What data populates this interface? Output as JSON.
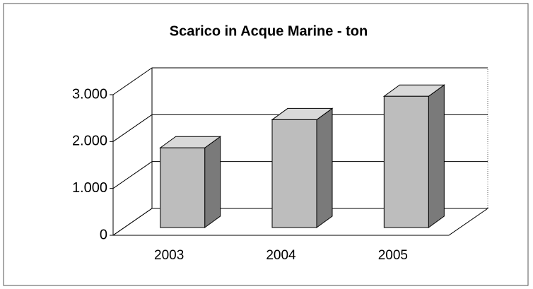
{
  "chart_data": {
    "type": "bar3d",
    "title": "Scarico in Acque Marine - ton",
    "categories": [
      "2003",
      "2004",
      "2005"
    ],
    "values": [
      1700,
      2300,
      2800
    ],
    "color": "#bdbdbd",
    "ylim": [
      0,
      3000
    ],
    "yticks": [
      0,
      {
        "value": 1000,
        "label": "1.000"
      },
      {
        "value": 2000,
        "label": "2.000"
      },
      {
        "value": 3000,
        "label": "3.000"
      }
    ],
    "grid": true
  }
}
